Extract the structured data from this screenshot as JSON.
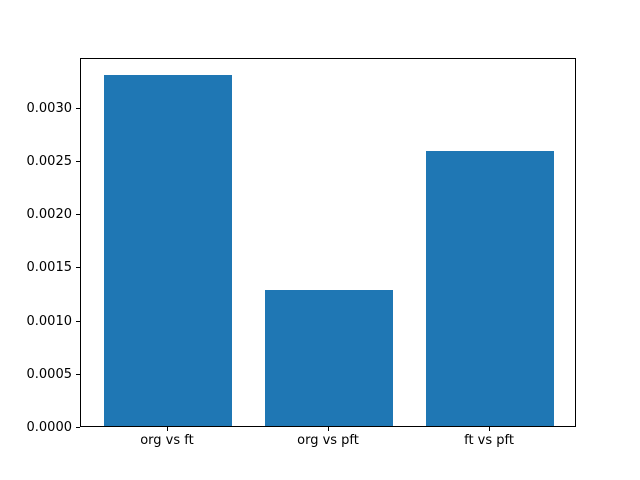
{
  "figure": {
    "background": "#ffffff",
    "axes_edge_color": "#000000",
    "text_color": "#000000"
  },
  "chart_data": {
    "type": "bar",
    "title": "",
    "xlabel": "",
    "ylabel": "",
    "categories": [
      "org vs ft",
      "org vs pft",
      "ft vs pft"
    ],
    "values": [
      0.0033,
      0.00128,
      0.00258
    ],
    "bar_color": "#1f77b4",
    "bar_width_fraction": 0.8,
    "xlim": [
      -0.54,
      2.54
    ],
    "ylim": [
      0,
      0.003465
    ],
    "yticks": [
      0.0,
      0.0005,
      0.001,
      0.0015,
      0.002,
      0.0025,
      0.003
    ],
    "ytick_labels": [
      "0.0000",
      "0.0005",
      "0.0010",
      "0.0015",
      "0.0020",
      "0.0025",
      "0.0030"
    ],
    "grid": false,
    "legend": null
  }
}
